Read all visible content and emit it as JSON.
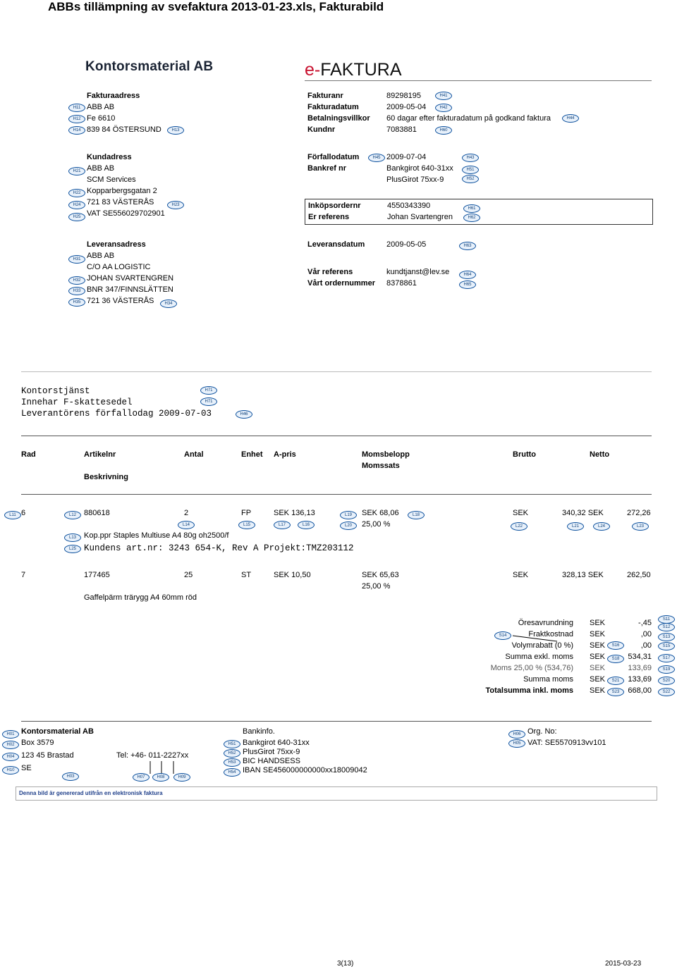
{
  "page": {
    "title": "ABBs tillämpning av svefaktura 2013-01-23.xls, Fakturabild"
  },
  "header": {
    "company": "Kontorsmaterial AB",
    "doc_type_e": "e-",
    "doc_type_rest": "FAKTURA"
  },
  "invoice_address": {
    "heading": "Fakturaadress",
    "lines": [
      "ABB AB",
      "Fe 6610",
      "839 84 ÖSTERSUND"
    ]
  },
  "invoice_info": {
    "labels": [
      "Fakturanr",
      "Fakturadatum",
      "Betalningsvillkor",
      "Kundnr"
    ],
    "values": [
      "89298195",
      "2009-05-04",
      "60 dagar efter fakturadatum på godkand faktura",
      "7083881"
    ]
  },
  "customer_address": {
    "heading": "Kundadress",
    "lines": [
      "ABB AB",
      "SCM Services",
      "Kopparbergsgatan 2",
      "721 83 VÄSTERÅS",
      "VAT SE556029702901"
    ]
  },
  "due": {
    "labels": [
      "Förfallodatum",
      "Bankref nr"
    ],
    "values": [
      "2009-07-04",
      "Bankgirot 640-31xx",
      "PlusGirot 75xx-9"
    ]
  },
  "order": {
    "labels": [
      "Inköpsordernr",
      "Er referens"
    ],
    "values": [
      "4550343390",
      "Johan Svartengren"
    ]
  },
  "delivery_address": {
    "heading": "Leveransadress",
    "lines": [
      "ABB AB",
      "C/O AA LOGISTIC",
      "JOHAN SVARTENGREN",
      "BNR 347/FINNSLÄTTEN",
      "721 36 VÄSTERÅS"
    ]
  },
  "delivery_info": {
    "labels": [
      "Leveransdatum",
      "Vår referens",
      "Vårt ordernummer"
    ],
    "values": [
      "2009-05-05",
      "kundtjanst@lev.se",
      "8378861"
    ]
  },
  "notes": [
    "Kontorstjänst",
    "Innehar F-skattesedel",
    "Leverantörens förfallodag 2009-07-03"
  ],
  "table": {
    "headers": [
      "Rad",
      "Artikelnr",
      "Antal",
      "Enhet",
      "A-pris",
      "Momsbelopp",
      "Momssats",
      "Brutto",
      "Netto",
      "Beskrivning"
    ],
    "row1": {
      "rad": "6",
      "artikel": "880618",
      "antal": "2",
      "enhet": "FP",
      "apris": "SEK 136,13",
      "moms": "SEK 68,06",
      "momssats": "25,00 %",
      "brutto_cur": "SEK",
      "brutto": "340,32 SEK",
      "netto": "272,26",
      "beskrivning": "Kop.ppr Staples Multiuse A4 80g oh2500/f",
      "kund": "Kundens art.nr: 3243 654-K, Rev A Projekt:TMZ203112"
    },
    "row2": {
      "rad": "7",
      "artikel": "177465",
      "antal": "25",
      "enhet": "ST",
      "apris": "SEK 10,50",
      "moms": "SEK 65,63",
      "momssats": "25,00 %",
      "brutto_cur": "SEK",
      "brutto": "328,13 SEK",
      "netto": "262,50",
      "beskrivning": "Gaffelpärm trärygg A4 60mm röd"
    }
  },
  "summary": {
    "labels": [
      "Öresavrundning",
      "Fraktkostnad",
      "Volymrabatt (0 %)",
      "Summa exkl. moms",
      "Moms 25,00 % (534,76)",
      "Summa moms",
      "Totalsumma inkl. moms"
    ],
    "currency": [
      "SEK",
      "SEK",
      "SEK",
      "SEK",
      "SEK",
      "SEK",
      "SEK"
    ],
    "values": [
      "-,45",
      ",00",
      ",00",
      "534,31",
      "133,69",
      "133,69",
      "668,00"
    ]
  },
  "footer": {
    "company": "Kontorsmaterial AB",
    "addr": [
      "Box 3579",
      "123 45 Brastad",
      "SE"
    ],
    "tel": "Tel: +46- 011-2227xx",
    "bank_heading": "Bankinfo.",
    "bank": [
      "Bankgirot 640-31xx",
      "PlusGirot 75xx-9",
      "BIC HANDSESS",
      "IBAN SE456000000000xx18009042"
    ],
    "org_heading": "Org. No:",
    "vat": "VAT: SE5570913vv101",
    "generated": "Denna bild är genererad utifrån en elektronisk faktura"
  },
  "pager": {
    "page": "3(13)",
    "date": "2015-03-23"
  },
  "tags": {
    "h11": "H11",
    "h12": "H12",
    "h14": "H14",
    "h13": "H13",
    "h41": "H41",
    "h42": "H42",
    "h44": "H44",
    "h60": "H60",
    "h21": "H21",
    "h22": "H22",
    "h24": "H24",
    "h25": "H25",
    "h23": "H23",
    "h45": "H45",
    "h43": "H43",
    "h51": "H51",
    "h52": "H52",
    "h61": "H61",
    "h62": "H62",
    "h31": "H31",
    "h32": "H32",
    "h33": "H33",
    "h35": "H35",
    "h34": "H34",
    "h63": "H63",
    "h64": "H64",
    "h65": "H65",
    "h71": "H71",
    "h46": "H46",
    "l11": "L11",
    "l12": "L12",
    "l19": "L19",
    "l18": "L18",
    "l14": "L14",
    "l15": "L15",
    "l17": "L17",
    "l16": "L16",
    "l20": "L20",
    "l22": "L22",
    "l21": "L21",
    "l24": "L24",
    "l23": "L23",
    "l13": "L13",
    "l25": "L25",
    "s11": "S11",
    "s12": "S12",
    "s13": "S13",
    "s14": "S14",
    "s15": "S15",
    "s16": "S16",
    "s17": "S17",
    "s18": "S18",
    "s19": "S19",
    "s20": "S20",
    "s21": "S21",
    "s22": "S22",
    "s23": "S23",
    "h01": "H01",
    "h02": "H02",
    "h04": "H04",
    "h10": "H10",
    "h03": "H03",
    "h07": "H07",
    "h08": "H08",
    "h09": "H09",
    "h53": "H53",
    "h54": "H54",
    "h06": "H06",
    "h05": "H05"
  }
}
